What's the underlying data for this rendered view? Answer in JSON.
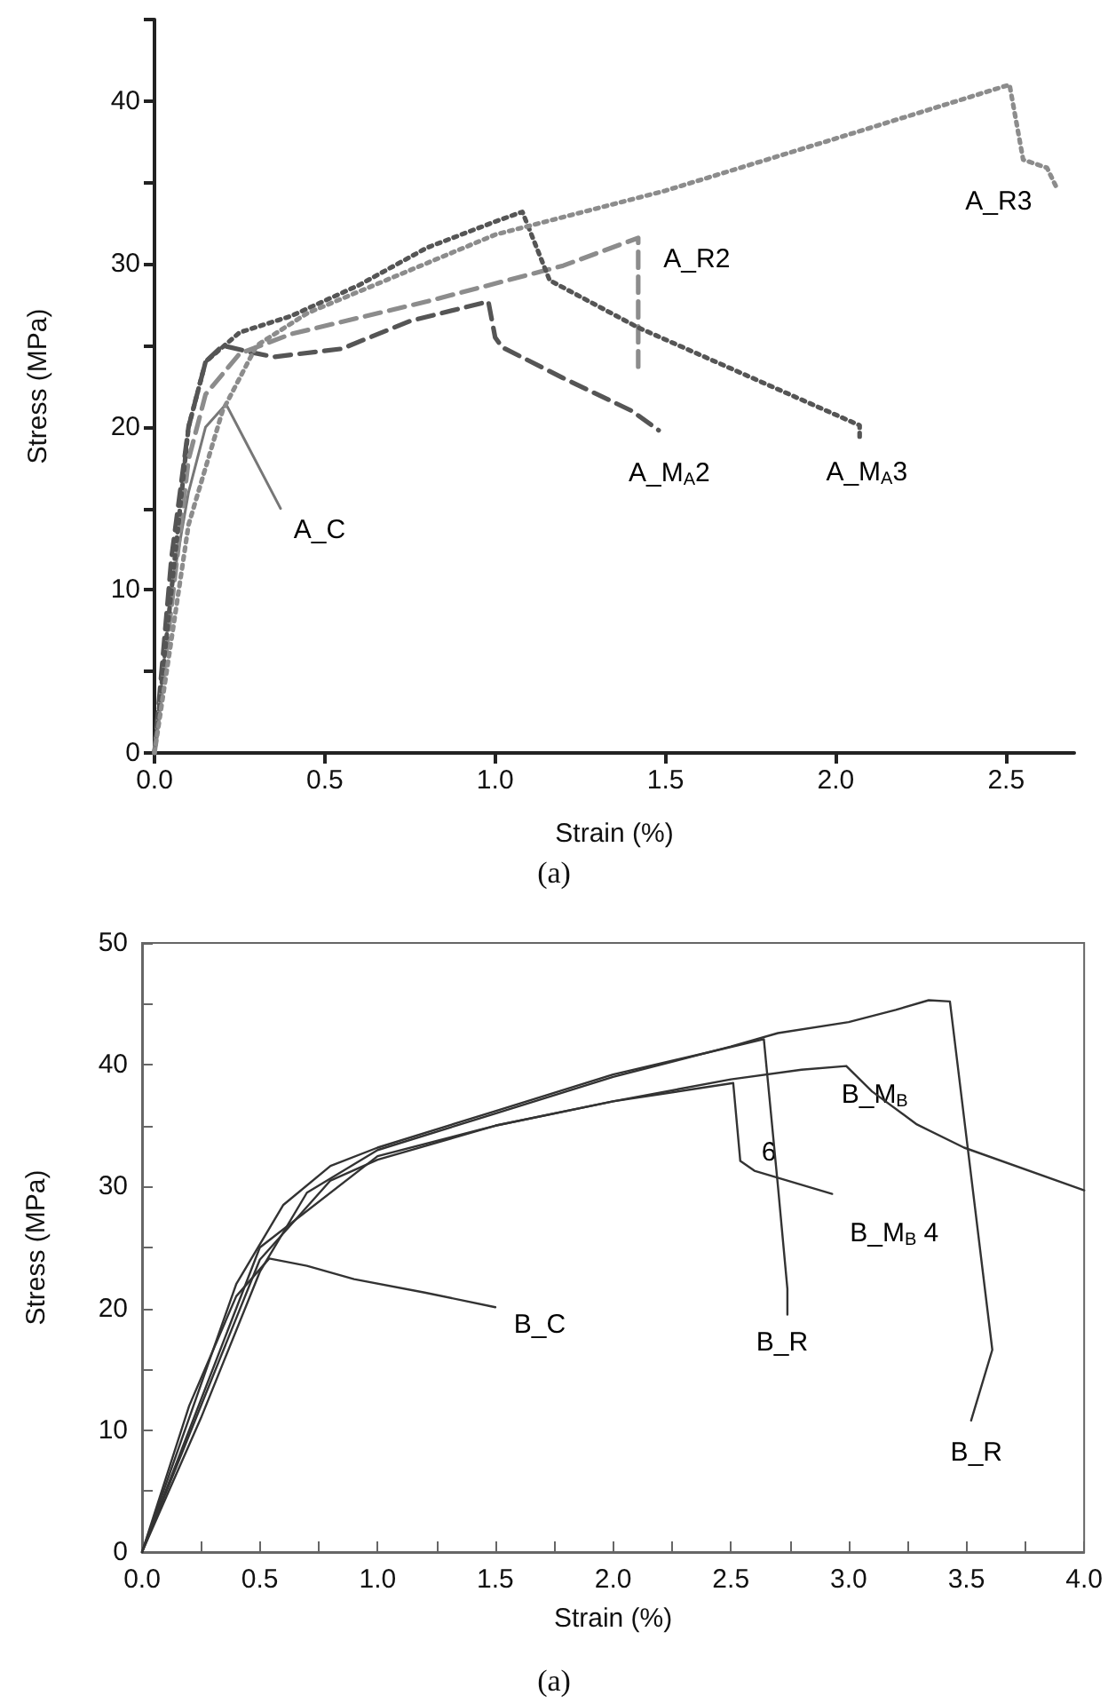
{
  "chart_data": [
    {
      "type": "line",
      "xlabel": "Strain (%)",
      "ylabel": "Stress (MPa)",
      "xlim": [
        0,
        2.7
      ],
      "ylim": [
        0,
        45
      ],
      "xticks": [
        {
          "value": 0,
          "label": "0.0"
        },
        {
          "value": 0.5,
          "label": "0.5"
        },
        {
          "value": 1,
          "label": "1.0"
        },
        {
          "value": 1.5,
          "label": "1.5"
        },
        {
          "value": 2,
          "label": "2.0"
        },
        {
          "value": 2.5,
          "label": "2.5"
        }
      ],
      "yticks": [
        0,
        {
          "value": 5,
          "label": null
        },
        10,
        {
          "value": 15,
          "label": null
        },
        20,
        {
          "value": 25,
          "label": null
        },
        30,
        {
          "value": 35,
          "label": null
        },
        40,
        {
          "value": 45,
          "label": null
        }
      ],
      "marker": "none",
      "grid": false,
      "series": [
        {
          "name": "A_C",
          "color": "#777777",
          "line_style": "solid",
          "x": [
            0,
            0.05,
            0.1,
            0.15,
            0.21,
            0.27,
            0.37
          ],
          "values": [
            0,
            10,
            16,
            20,
            21.4,
            19,
            15
          ]
        },
        {
          "name": "A_M$_{A}$2",
          "color": "#555555",
          "line_style": "dashed",
          "x": [
            0,
            0.05,
            0.1,
            0.15,
            0.2,
            0.28,
            0.35,
            0.55,
            0.75,
            0.98,
            1.0,
            1.02,
            1.2,
            1.4,
            1.48
          ],
          "values": [
            0,
            12,
            20,
            24,
            25,
            24.6,
            24.3,
            24.8,
            26.5,
            27.7,
            25.5,
            24.9,
            23,
            21,
            19.8
          ]
        },
        {
          "name": "A_R2",
          "color": "#8c8c8c",
          "line_style": "dashed",
          "x": [
            0,
            0.1,
            0.15,
            0.25,
            0.4,
            0.8,
            1.2,
            1.42,
            1.42
          ],
          "values": [
            0,
            18,
            22,
            24.5,
            25.7,
            27.7,
            29.9,
            31.6,
            23.7
          ]
        },
        {
          "name": "A_M$_{A}$3",
          "color": "#555555",
          "line_style": "dotted",
          "x": [
            0,
            0.1,
            0.15,
            0.25,
            0.4,
            0.6,
            0.8,
            1.0,
            1.08,
            1.16,
            1.42,
            1.94,
            2.07,
            2.07
          ],
          "values": [
            0,
            20,
            24,
            25.8,
            26.8,
            28.7,
            31,
            32.6,
            33.2,
            29,
            26.1,
            21.3,
            20.1,
            19.2
          ]
        },
        {
          "name": "A_R3",
          "color": "#8c8c8c",
          "line_style": "dotted",
          "x": [
            0,
            0.1,
            0.2,
            0.3,
            0.45,
            1.0,
            1.5,
            2.0,
            2.51,
            2.55,
            2.62,
            2.65
          ],
          "values": [
            0,
            14,
            21,
            25,
            27,
            31.8,
            34.5,
            37.7,
            41,
            36.4,
            35.9,
            34.6
          ]
        }
      ],
      "annotations": [
        "(a)"
      ]
    },
    {
      "type": "line",
      "xlabel": "Strain (%)",
      "ylabel": "Stress (MPa)",
      "xlim": [
        0,
        4
      ],
      "ylim": [
        0,
        50
      ],
      "xticks": [
        {
          "value": 0,
          "label": "0.0"
        },
        {
          "value": 0.25,
          "label": null
        },
        {
          "value": 0.5,
          "label": "0.5"
        },
        {
          "value": 0.75,
          "label": null
        },
        {
          "value": 1,
          "label": "1.0"
        },
        {
          "value": 1.25,
          "label": null
        },
        {
          "value": 1.5,
          "label": "1.5"
        },
        {
          "value": 1.75,
          "label": null
        },
        {
          "value": 2,
          "label": "2.0"
        },
        {
          "value": 2.25,
          "label": null
        },
        {
          "value": 2.5,
          "label": "2.5"
        },
        {
          "value": 2.75,
          "label": null
        },
        {
          "value": 3,
          "label": "3.0"
        },
        {
          "value": 3.25,
          "label": null
        },
        {
          "value": 3.5,
          "label": "3.5"
        },
        {
          "value": 3.75,
          "label": null
        },
        {
          "value": 4,
          "label": "4.0"
        }
      ],
      "yticks": [
        0,
        {
          "value": 5,
          "label": null
        },
        10,
        {
          "value": 15,
          "label": null
        },
        20,
        {
          "value": 25,
          "label": null
        },
        30,
        {
          "value": 35,
          "label": null
        },
        40,
        {
          "value": 45,
          "label": null
        },
        50
      ],
      "marker": "none",
      "grid": false,
      "line_style": "solid",
      "series": [
        {
          "name": "B_C",
          "color": "#333333",
          "x": [
            0,
            0.2,
            0.4,
            0.54,
            0.7,
            0.9,
            1.2,
            1.5
          ],
          "values": [
            0,
            12,
            21,
            24.1,
            23.5,
            22.4,
            21.3,
            20.1
          ]
        },
        {
          "name": "B_R",
          "color": "#333333",
          "x": [
            0,
            0.2,
            0.4,
            0.6,
            0.8,
            1.0,
            1.5,
            2.0,
            2.4,
            2.64,
            2.7,
            2.74,
            2.74
          ],
          "values": [
            0,
            11,
            22,
            28.5,
            31.7,
            33.2,
            36.2,
            39.2,
            41,
            42.1,
            30,
            21.6,
            19.5
          ]
        },
        {
          "name": "B_R",
          "color": "#333333",
          "x": [
            0,
            0.25,
            0.5,
            0.7,
            1.0,
            1.5,
            2.0,
            2.5,
            2.7,
            3.0,
            3.2,
            3.34,
            3.43,
            3.61,
            3.52
          ],
          "values": [
            0,
            11,
            23,
            29.5,
            33,
            36,
            39,
            41.5,
            42.6,
            43.5,
            44.5,
            45.3,
            45.2,
            16.6,
            10.8
          ]
        },
        {
          "name": "B_M$_{B}$",
          "color": "#333333",
          "x": [
            0,
            0.5,
            0.8,
            1.0,
            1.5,
            2.0,
            2.5,
            2.8,
            2.99,
            3.1,
            3.29,
            3.49,
            4.0
          ],
          "values": [
            0,
            24,
            30.5,
            32.2,
            35,
            37,
            38.8,
            39.6,
            39.9,
            37.8,
            35.1,
            33.2,
            29.7
          ]
        },
        {
          "name": "B_M$_{B}$ 4",
          "color": "#333333",
          "x": [
            0,
            0.5,
            1.0,
            1.5,
            2.0,
            2.51,
            2.54,
            2.6,
            2.93
          ],
          "values": [
            0,
            25,
            32.5,
            35,
            37,
            38.5,
            32.1,
            31.3,
            29.4
          ]
        }
      ],
      "annotations": [
        "6",
        "(a)"
      ]
    }
  ]
}
